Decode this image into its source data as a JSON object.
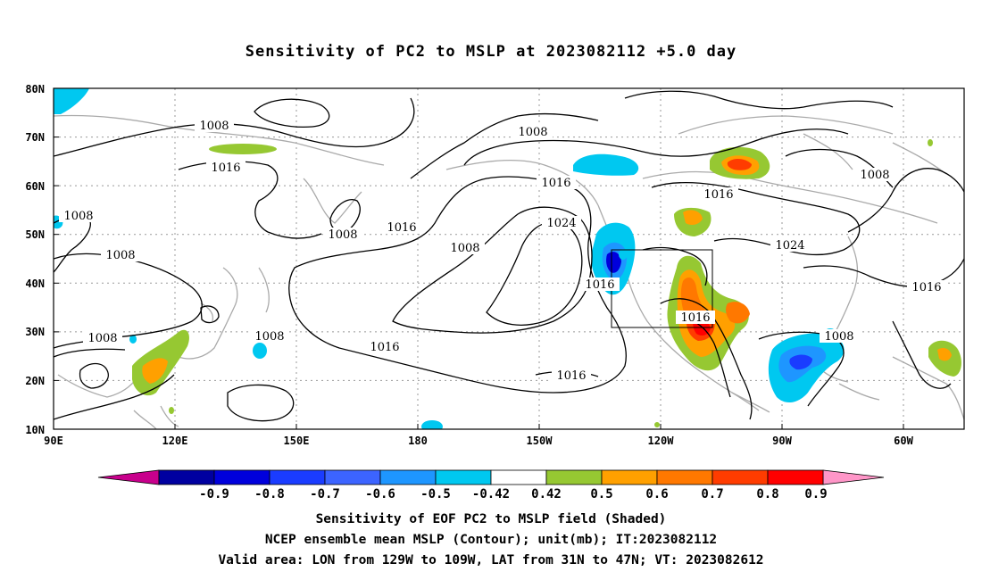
{
  "title": "Sensitivity of PC2 to MSLP at 2023082112 +5.0 day",
  "lat_labels": [
    "80N",
    "70N",
    "60N",
    "50N",
    "40N",
    "30N",
    "20N",
    "10N"
  ],
  "lon_labels": [
    "90E",
    "120E",
    "150E",
    "180",
    "150W",
    "120W",
    "90W",
    "60W"
  ],
  "contour_labels": [
    {
      "text": "1008"
    },
    {
      "text": "1016"
    },
    {
      "text": "1008"
    },
    {
      "text": "1008"
    },
    {
      "text": "1008"
    },
    {
      "text": "1008"
    },
    {
      "text": "1016"
    },
    {
      "text": "1008"
    },
    {
      "text": "1016"
    },
    {
      "text": "1008"
    },
    {
      "text": "1016"
    },
    {
      "text": "1024"
    },
    {
      "text": "1016"
    },
    {
      "text": "1016"
    },
    {
      "text": "1016"
    },
    {
      "text": "1016"
    },
    {
      "text": "1008"
    },
    {
      "text": "1024"
    },
    {
      "text": "1008"
    },
    {
      "text": "1016"
    },
    {
      "text": "1008"
    }
  ],
  "colorbar": {
    "colors": [
      "#0000a0",
      "#0000dc",
      "#1a3cff",
      "#3c64ff",
      "#1e96ff",
      "#00c8f0",
      "#ffffff",
      "#96c832",
      "#ffa000",
      "#ff7800",
      "#ff3c00",
      "#ff0000"
    ],
    "under_color": "#c8008c",
    "over_color": "#ff96c8",
    "labels": [
      "-0.9",
      "-0.8",
      "-0.7",
      "-0.6",
      "-0.5",
      "-0.42",
      "0.42",
      "0.5",
      "0.6",
      "0.7",
      "0.8",
      "0.9"
    ]
  },
  "captions": [
    "Sensitivity of EOF PC2 to MSLP field (Shaded)",
    "NCEP ensemble mean MSLP (Contour); unit(mb); IT:2023082112",
    "Valid area: LON from 129W to 109W, LAT from 31N to 47N; VT: 2023082612"
  ]
}
